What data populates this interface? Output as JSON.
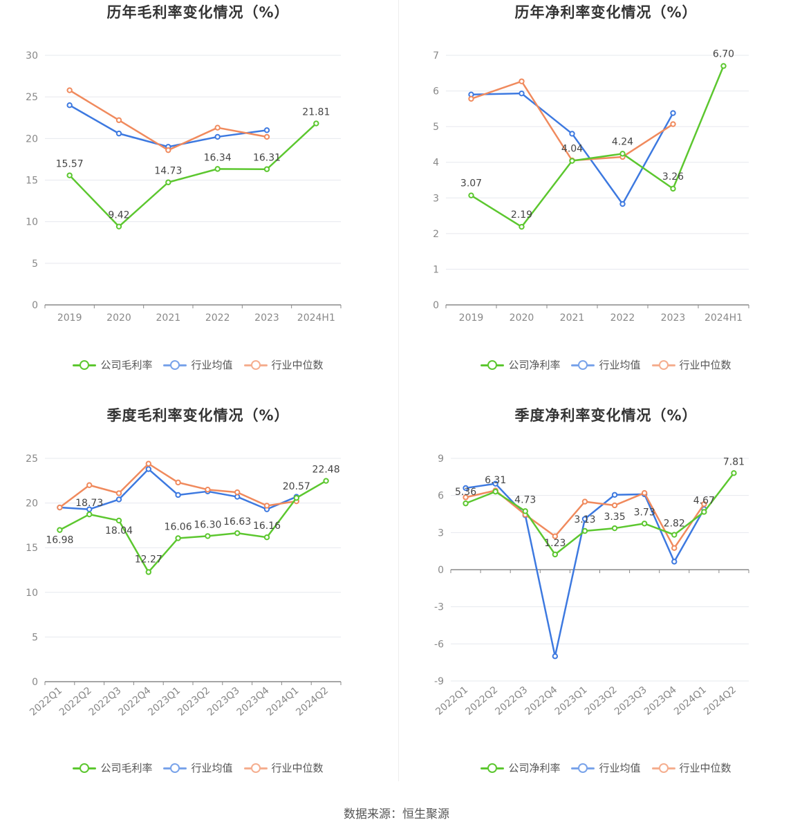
{
  "source_text": "数据来源：恒生聚源",
  "colors": {
    "company": "#5cc72f",
    "avg": "#3d79e0",
    "median": "#f08a5d"
  },
  "chart_data": [
    {
      "id": "annual_gross",
      "type": "line",
      "title": "历年毛利率变化情况（%）",
      "categories": [
        "2019",
        "2020",
        "2021",
        "2022",
        "2023",
        "2024H1"
      ],
      "ylim": [
        0,
        30
      ],
      "yticks": [
        0,
        5,
        10,
        15,
        20,
        25,
        30
      ],
      "legend": [
        "公司毛利率",
        "行业均值",
        "行业中位数"
      ],
      "series": [
        {
          "name": "公司毛利率",
          "color": "#5cc72f",
          "values": [
            15.57,
            9.42,
            14.73,
            16.34,
            16.31,
            21.81
          ],
          "labels": [
            "15.57",
            "9.42",
            "14.73",
            "16.34",
            "16.31",
            "21.81"
          ]
        },
        {
          "name": "行业均值",
          "color": "#3d79e0",
          "values": [
            24.0,
            20.6,
            19.0,
            20.2,
            21.0,
            null
          ]
        },
        {
          "name": "行业中位数",
          "color": "#f08a5d",
          "values": [
            25.8,
            22.2,
            18.6,
            21.3,
            20.2,
            null
          ]
        }
      ]
    },
    {
      "id": "annual_net",
      "type": "line",
      "title": "历年净利率变化情况（%）",
      "categories": [
        "2019",
        "2020",
        "2021",
        "2022",
        "2023",
        "2024H1"
      ],
      "ylim": [
        0,
        7
      ],
      "yticks": [
        0,
        1,
        2,
        3,
        4,
        5,
        6,
        7
      ],
      "legend": [
        "公司净利率",
        "行业均值",
        "行业中位数"
      ],
      "series": [
        {
          "name": "公司净利率",
          "color": "#5cc72f",
          "values": [
            3.07,
            2.19,
            4.04,
            4.24,
            3.26,
            6.7
          ],
          "labels": [
            "3.07",
            "2.19",
            "4.04",
            "4.24",
            "3.26",
            "6.70"
          ]
        },
        {
          "name": "行业均值",
          "color": "#3d79e0",
          "values": [
            5.9,
            5.93,
            4.8,
            2.83,
            5.38,
            null
          ]
        },
        {
          "name": "行业中位数",
          "color": "#f08a5d",
          "values": [
            5.78,
            6.27,
            4.05,
            4.15,
            5.07,
            null
          ]
        }
      ]
    },
    {
      "id": "quarterly_gross",
      "type": "line",
      "title": "季度毛利率变化情况（%）",
      "categories": [
        "2022Q1",
        "2022Q2",
        "2022Q3",
        "2022Q4",
        "2023Q1",
        "2023Q2",
        "2023Q3",
        "2023Q4",
        "2024Q1",
        "2024Q2"
      ],
      "ylim": [
        0,
        25
      ],
      "yticks": [
        0,
        5,
        10,
        15,
        20,
        25
      ],
      "legend": [
        "公司毛利率",
        "行业均值",
        "行业中位数"
      ],
      "series": [
        {
          "name": "公司毛利率",
          "color": "#5cc72f",
          "values": [
            16.98,
            18.73,
            18.04,
            12.27,
            16.06,
            16.3,
            16.63,
            16.16,
            20.57,
            22.48
          ],
          "labels": [
            "16.98",
            "18.73",
            "18.04",
            "12.27",
            "16.06",
            "16.30",
            "16.63",
            "16.16",
            "20.57",
            "22.48"
          ]
        },
        {
          "name": "行业均值",
          "color": "#3d79e0",
          "values": [
            19.5,
            19.3,
            20.4,
            23.8,
            20.9,
            21.3,
            20.7,
            19.3,
            20.7,
            null
          ]
        },
        {
          "name": "行业中位数",
          "color": "#f08a5d",
          "values": [
            19.5,
            22.0,
            21.1,
            24.4,
            22.3,
            21.5,
            21.2,
            19.7,
            20.2,
            null
          ]
        }
      ]
    },
    {
      "id": "quarterly_net",
      "type": "line",
      "title": "季度净利率变化情况（%）",
      "categories": [
        "2022Q1",
        "2022Q2",
        "2022Q3",
        "2022Q4",
        "2023Q1",
        "2023Q2",
        "2023Q3",
        "2023Q4",
        "2024Q1",
        "2024Q2"
      ],
      "ylim": [
        -9,
        9
      ],
      "yticks": [
        -9,
        -6,
        -3,
        0,
        3,
        6,
        9
      ],
      "legend": [
        "公司净利率",
        "行业均值",
        "行业中位数"
      ],
      "series": [
        {
          "name": "公司净利率",
          "color": "#5cc72f",
          "values": [
            5.36,
            6.31,
            4.73,
            1.23,
            3.13,
            3.35,
            3.73,
            2.82,
            4.67,
            7.81
          ],
          "labels": [
            "5.36",
            "6.31",
            "4.73",
            "1.23",
            "3.13",
            "3.35",
            "3.73",
            "2.82",
            "4.67",
            "7.81"
          ]
        },
        {
          "name": "行业均值",
          "color": "#3d79e0",
          "values": [
            6.6,
            6.95,
            4.4,
            -7.0,
            4.1,
            6.05,
            6.1,
            0.65,
            4.9,
            null
          ]
        },
        {
          "name": "行业中位数",
          "color": "#f08a5d",
          "values": [
            5.85,
            6.4,
            4.45,
            2.7,
            5.5,
            5.2,
            6.2,
            1.75,
            5.3,
            null
          ]
        }
      ]
    }
  ]
}
